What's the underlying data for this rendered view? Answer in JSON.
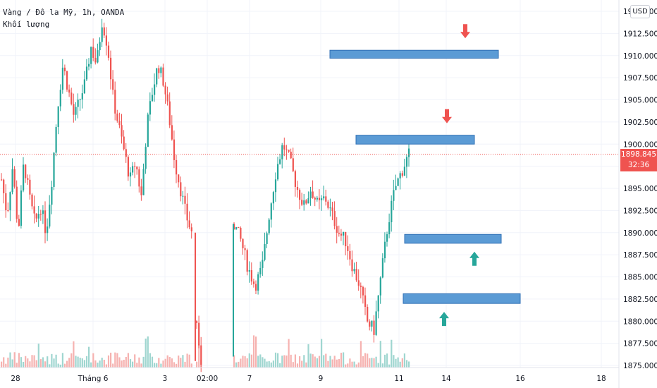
{
  "chart_data": {
    "type": "candlestick",
    "title": "Vàng / Đô la Mỹ, 1h, OANDA",
    "subtitle": "Khối lượng",
    "currency": "USD",
    "ylim": [
      1874.7,
      1915.7
    ],
    "yticks": [
      "1915.000",
      "1912.500",
      "1910.000",
      "1907.500",
      "1905.000",
      "1902.500",
      "1900.000",
      "1897.500",
      "1895.000",
      "1892.500",
      "1890.000",
      "1887.500",
      "1885.000",
      "1882.500",
      "1880.000",
      "1877.500",
      "1875.000"
    ],
    "xticks": [
      "28",
      "Tháng 6",
      "3",
      "02:00",
      "7",
      "9",
      "11",
      "14",
      "16",
      "18"
    ],
    "last_price": "1898.845",
    "countdown": "32:36",
    "colors": {
      "up": "#26a69a",
      "down": "#ef5350",
      "zone_fill": "#5b9bd5",
      "zone_stroke": "#2f6fb5",
      "grid": "#f0f3fa"
    },
    "zones": [
      {
        "price_low": 1909.7,
        "price_high": 1910.6,
        "direction": "down"
      },
      {
        "price_low": 1900.0,
        "price_high": 1901.0,
        "direction": "down"
      },
      {
        "price_low": 1888.8,
        "price_high": 1889.8,
        "direction": "up"
      },
      {
        "price_low": 1882.0,
        "price_high": 1883.1,
        "direction": "up"
      }
    ],
    "series": [
      {
        "segment": 1,
        "path_prices": [
          1896,
          1892,
          1897.5,
          1890,
          1898,
          1894,
          1891,
          1893,
          1890,
          1896,
          1904,
          1909,
          1906,
          1903,
          1905,
          1907,
          1911,
          1909,
          1914,
          1911,
          1905,
          1902,
          1899,
          1896,
          1898,
          1894,
          1902,
          1906,
          1909,
          1907,
          1903,
          1898,
          1895,
          1892,
          1890
        ]
      },
      {
        "segment": 2,
        "path_prices": [
          1880,
          1877,
          1876,
          1875.5
        ]
      },
      {
        "segment": 3,
        "path_prices": [
          1891,
          1889,
          1886,
          1884,
          1886,
          1892,
          1897,
          1900,
          1898,
          1895,
          1893,
          1895,
          1893,
          1894,
          1892,
          1890,
          1889,
          1886,
          1884,
          1880,
          1879,
          1885,
          1891,
          1895,
          1897,
          1898.845
        ]
      }
    ]
  }
}
